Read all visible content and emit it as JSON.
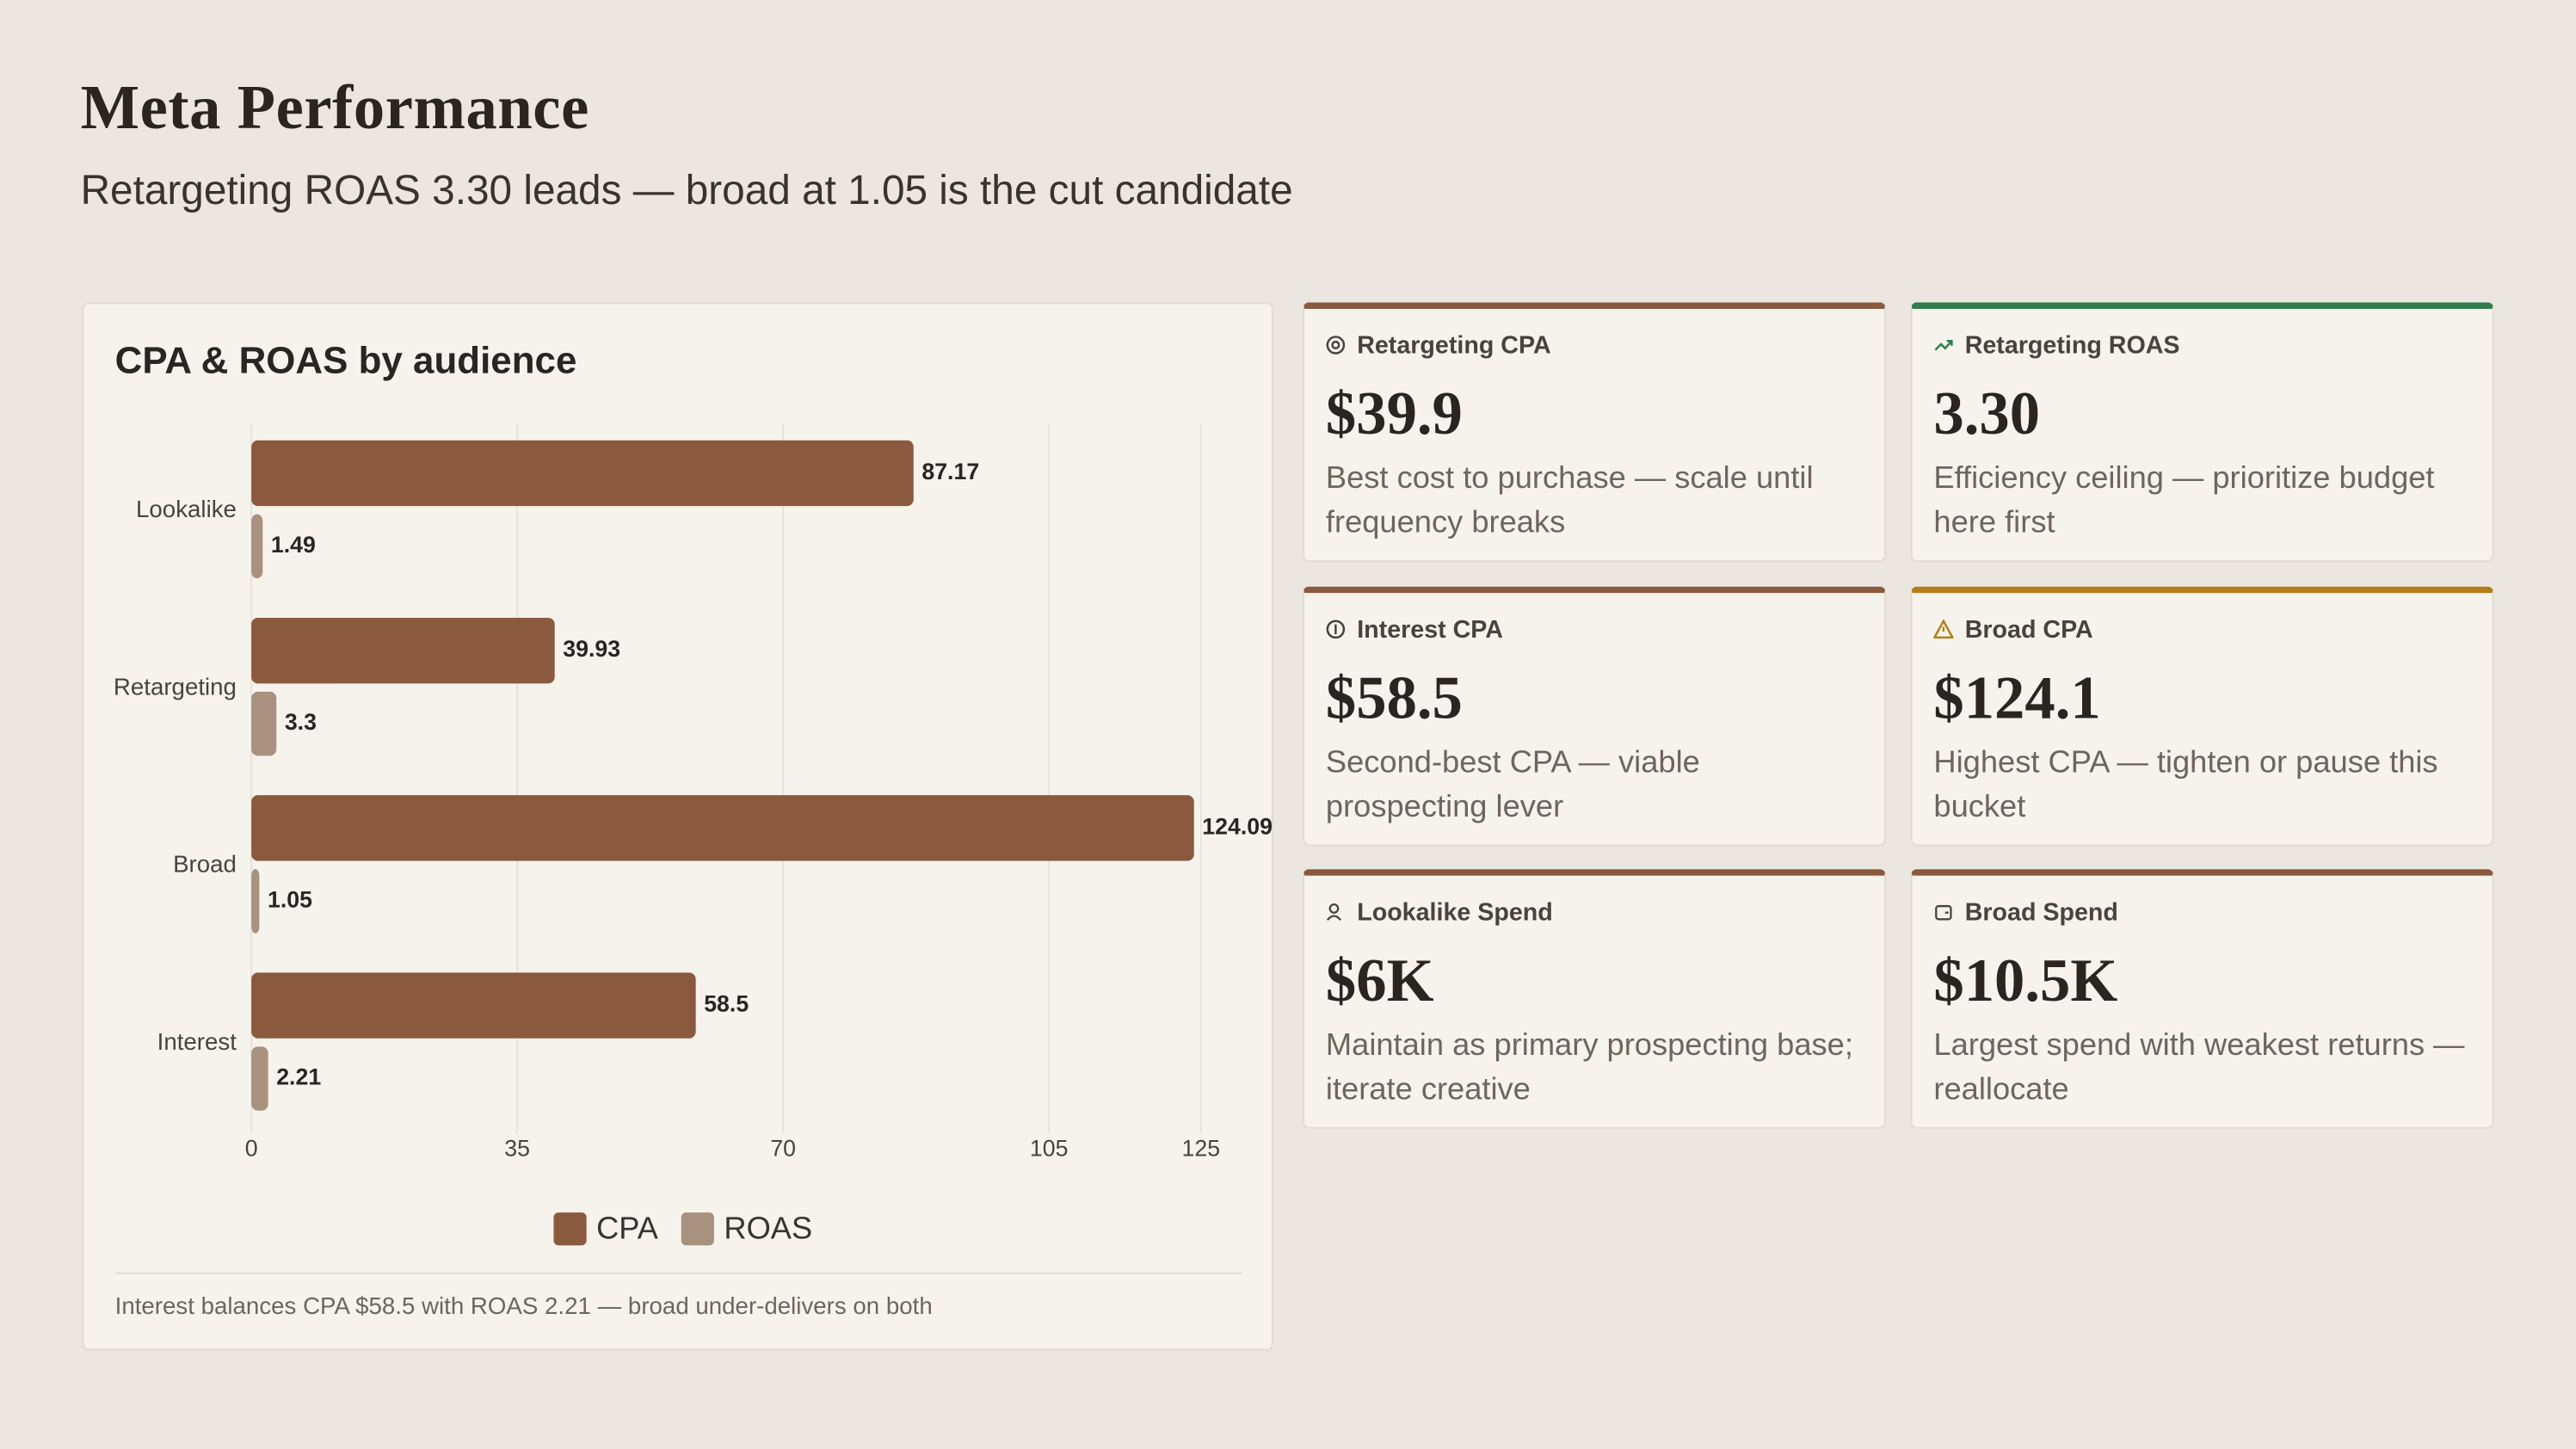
{
  "title": "Meta Performance",
  "subtitle": "Retargeting ROAS 3.30 leads — broad at 1.05 is the cut candidate",
  "chart_data": {
    "type": "bar",
    "orientation": "horizontal",
    "title": "CPA & ROAS by audience",
    "categories": [
      "Lookalike",
      "Retargeting",
      "Broad",
      "Interest"
    ],
    "series": [
      {
        "name": "CPA",
        "color": "#8b5a3e",
        "values": [
          87.17,
          39.93,
          124.09,
          58.5
        ]
      },
      {
        "name": "ROAS",
        "color": "#a8917f",
        "values": [
          1.49,
          3.3,
          1.05,
          2.21
        ]
      }
    ],
    "xlim": [
      0,
      125
    ],
    "xticks": [
      0,
      35,
      70,
      105,
      125
    ],
    "grid": true,
    "legend": "bottom",
    "caption": "Interest balances CPA $58.5 with ROAS 2.21 — broad under-delivers on both"
  },
  "kpis": [
    {
      "label": "Retargeting CPA",
      "value": "$39.9",
      "note": "Best cost to purchase — scale until frequency breaks"
    },
    {
      "label": "Retargeting ROAS",
      "value": "3.30",
      "note": "Efficiency ceiling — prioritize budget here first"
    },
    {
      "label": "Interest CPA",
      "value": "$58.5",
      "note": "Second-best CPA — viable prospecting lever"
    },
    {
      "label": "Broad CPA",
      "value": "$124.1",
      "note": "Highest CPA — tighten or pause this bucket"
    },
    {
      "label": "Lookalike Spend",
      "value": "$6K",
      "note": "Maintain as primary prospecting base; iterate creative"
    },
    {
      "label": "Broad Spend",
      "value": "$10.5K",
      "note": "Largest spend with weakest returns — reallocate"
    }
  ]
}
